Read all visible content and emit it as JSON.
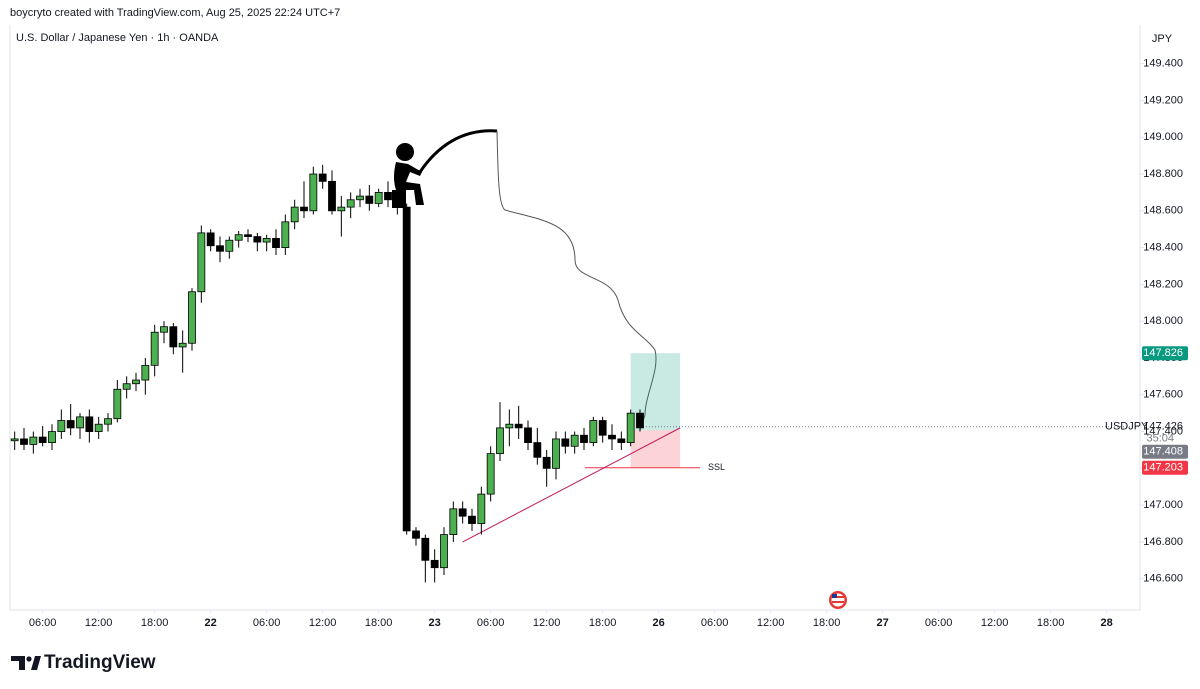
{
  "chart_data": {
    "type": "candlestick",
    "credit": "boycryto created with TradingView.com, Aug 25, 2025 22:24 UTC+7",
    "title": "U.S. Dollar / Japanese Yen · 1h · OANDA",
    "currency": "JPY",
    "brand": "TradingView",
    "symbol": "USDJPY",
    "countdown": "35:04",
    "annotation": "SSL",
    "up_color": "#4caf50",
    "down_color": "#000000",
    "x": [
      3,
      4,
      5,
      6,
      7,
      8,
      9,
      10,
      11,
      12,
      13,
      14,
      15,
      16,
      17,
      18,
      19,
      20,
      21,
      22,
      23,
      24,
      25,
      26,
      27,
      28,
      29,
      30,
      31,
      32,
      33,
      34,
      35,
      36,
      37,
      38,
      39,
      40,
      41,
      42,
      43,
      44,
      45,
      46,
      47,
      48,
      49,
      50,
      51,
      52,
      53,
      54,
      55,
      56,
      57,
      58,
      59,
      60,
      61,
      62,
      63,
      64,
      65,
      66,
      67,
      68,
      69,
      70
    ],
    "open": [
      147.35,
      147.36,
      147.33,
      147.37,
      147.34,
      147.4,
      147.46,
      147.42,
      147.48,
      147.4,
      147.44,
      147.47,
      147.63,
      147.66,
      147.68,
      147.76,
      147.94,
      147.97,
      147.86,
      147.88,
      148.16,
      148.48,
      148.41,
      148.38,
      148.44,
      148.47,
      148.46,
      148.43,
      148.45,
      148.4,
      148.54,
      148.62,
      148.6,
      148.8,
      148.76,
      148.6,
      148.62,
      148.66,
      148.68,
      148.64,
      148.7,
      148.66,
      148.62,
      146.86,
      146.82,
      146.7,
      146.66,
      146.84,
      146.98,
      146.94,
      146.9,
      147.06,
      147.28,
      147.42,
      147.44,
      147.42,
      147.34,
      147.26,
      147.2,
      147.36,
      147.32,
      147.38,
      147.34,
      147.46,
      147.38,
      147.36,
      147.34,
      147.5
    ],
    "high": [
      147.4,
      147.42,
      147.4,
      147.43,
      147.44,
      147.52,
      147.55,
      147.5,
      147.52,
      147.48,
      147.5,
      147.68,
      147.7,
      147.72,
      147.8,
      147.98,
      148.0,
      147.99,
      147.95,
      148.18,
      148.52,
      148.5,
      148.46,
      148.46,
      148.49,
      148.5,
      148.48,
      148.47,
      148.5,
      148.58,
      148.66,
      148.76,
      148.84,
      148.85,
      148.82,
      148.68,
      148.7,
      148.72,
      148.74,
      148.72,
      148.76,
      148.74,
      148.64,
      146.88,
      146.84,
      146.76,
      146.88,
      147.02,
      147.02,
      146.98,
      147.1,
      147.32,
      147.56,
      147.52,
      147.54,
      147.46,
      147.42,
      147.3,
      147.4,
      147.4,
      147.4,
      147.42,
      147.48,
      147.48,
      147.44,
      147.4,
      147.52,
      147.52
    ],
    "low": [
      147.3,
      147.3,
      147.28,
      147.32,
      147.3,
      147.36,
      147.38,
      147.36,
      147.34,
      147.36,
      147.4,
      147.45,
      147.58,
      147.62,
      147.6,
      147.7,
      147.88,
      147.82,
      147.72,
      147.84,
      148.1,
      148.38,
      148.32,
      148.34,
      148.4,
      148.43,
      148.38,
      148.38,
      148.36,
      148.36,
      148.5,
      148.56,
      148.58,
      148.72,
      148.58,
      148.46,
      148.56,
      148.62,
      148.6,
      148.62,
      148.62,
      148.58,
      146.84,
      146.78,
      146.58,
      146.58,
      146.62,
      146.8,
      146.9,
      146.86,
      146.84,
      147.02,
      147.24,
      147.32,
      147.36,
      147.3,
      147.22,
      147.1,
      147.14,
      147.28,
      147.28,
      147.3,
      147.32,
      147.34,
      147.3,
      147.3,
      147.32,
      147.4
    ],
    "close": [
      147.36,
      147.33,
      147.37,
      147.34,
      147.4,
      147.46,
      147.42,
      147.48,
      147.4,
      147.44,
      147.47,
      147.63,
      147.66,
      147.68,
      147.76,
      147.94,
      147.97,
      147.86,
      147.88,
      148.16,
      148.48,
      148.41,
      148.38,
      148.44,
      148.47,
      148.46,
      148.43,
      148.45,
      148.4,
      148.54,
      148.62,
      148.6,
      148.8,
      148.76,
      148.6,
      148.62,
      148.66,
      148.68,
      148.64,
      148.7,
      148.66,
      148.62,
      146.86,
      146.82,
      146.7,
      146.66,
      146.84,
      146.98,
      146.94,
      146.9,
      147.06,
      147.28,
      147.42,
      147.44,
      147.42,
      147.34,
      147.26,
      147.2,
      147.36,
      147.32,
      147.38,
      147.34,
      147.46,
      147.38,
      147.36,
      147.34,
      147.5,
      147.42
    ],
    "xlim": [
      2.5,
      121
    ],
    "ylim": [
      146.43,
      149.61
    ],
    "xticks": [
      {
        "value": 6,
        "label": "06:00"
      },
      {
        "value": 12,
        "label": "12:00"
      },
      {
        "value": 18,
        "label": "18:00"
      },
      {
        "value": 24,
        "label": "22"
      },
      {
        "value": 30,
        "label": "06:00"
      },
      {
        "value": 36,
        "label": "12:00"
      },
      {
        "value": 42,
        "label": "18:00"
      },
      {
        "value": 48,
        "label": "23"
      },
      {
        "value": 54,
        "label": "06:00"
      },
      {
        "value": 60,
        "label": "12:00"
      },
      {
        "value": 66,
        "label": "18:00"
      },
      {
        "value": 72,
        "label": "26"
      },
      {
        "value": 78,
        "label": "06:00"
      },
      {
        "value": 84,
        "label": "12:00"
      },
      {
        "value": 90,
        "label": "18:00"
      },
      {
        "value": 96,
        "label": "27"
      },
      {
        "value": 102,
        "label": "06:00"
      },
      {
        "value": 108,
        "label": "12:00"
      },
      {
        "value": 114,
        "label": "18:00"
      },
      {
        "value": 120,
        "label": "28"
      }
    ],
    "yticks": [
      {
        "value": 146.6,
        "label": "146.600"
      },
      {
        "value": 146.8,
        "label": "146.800"
      },
      {
        "value": 147,
        "label": "147.000"
      },
      {
        "value": 147.2,
        "label": "147.200"
      },
      {
        "value": 147.4,
        "label": "147.400"
      },
      {
        "value": 147.6,
        "label": "147.600"
      },
      {
        "value": 147.8,
        "label": "147.800"
      },
      {
        "value": 148,
        "label": "148.000"
      },
      {
        "value": 148.2,
        "label": "148.200"
      },
      {
        "value": 148.4,
        "label": "148.400"
      },
      {
        "value": 148.6,
        "label": "148.600"
      },
      {
        "value": 148.8,
        "label": "148.800"
      },
      {
        "value": 149,
        "label": "149.000"
      },
      {
        "value": 149.2,
        "label": "149.200"
      },
      {
        "value": 149.4,
        "label": "149.400"
      }
    ],
    "grid": false,
    "current_price": 147.426,
    "take_profit": 147.826,
    "take_profit_color": "#089981",
    "entry": 147.408,
    "entry_color": "#787b86",
    "stop_loss": 147.203,
    "stop_loss_color": "#f23645",
    "position_x": [
      69,
      74.3
    ],
    "trendline": {
      "x": [
        51,
        74.3
      ],
      "y": [
        146.8,
        147.42
      ],
      "color": "#c2185b"
    }
  }
}
